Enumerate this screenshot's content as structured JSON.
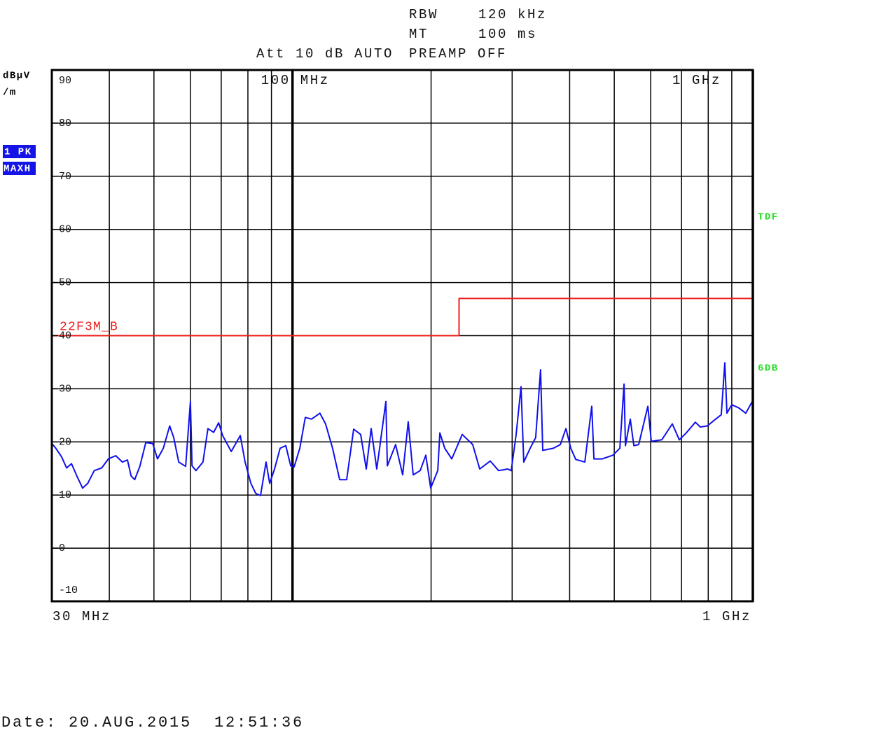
{
  "chart_data": {
    "type": "line",
    "settings": {
      "rbw_label": "RBW",
      "rbw": "120 kHz",
      "mt_label": "MT",
      "mt": "100 ms",
      "att": "Att 10 dB AUTO",
      "preamp": "PREAMP OFF"
    },
    "ylabel": "dBµV",
    "ylabel_2": "/m",
    "trace_labels": [
      "1 PK",
      "MAXH"
    ],
    "right_labels": [
      "TDF",
      "6DB"
    ],
    "start_label": "30 MHz",
    "stop_label": "1 GHz",
    "date": "Date: 20.AUG.2015  12:51:36",
    "xscale": "log",
    "xlim": [
      30,
      1000
    ],
    "xgrid": [
      40,
      50,
      60,
      70,
      80,
      90,
      200,
      300,
      400,
      500,
      600,
      700,
      800,
      900
    ],
    "xticks": [
      {
        "value": 100,
        "label": "100 MHz"
      },
      {
        "value": 1000,
        "label": "1 GHz"
      }
    ],
    "ylim": [
      -10,
      90
    ],
    "yticks": [
      -10,
      0,
      10,
      20,
      30,
      40,
      50,
      60,
      70,
      80,
      90
    ],
    "grid": true,
    "series": [
      {
        "color": "#1010ee",
        "x": [
          30.0,
          30.6,
          31.5,
          32.3,
          33.1,
          34.0,
          35.0,
          35.9,
          37.1,
          38.5,
          39.8,
          41.3,
          42.7,
          43.8,
          44.6,
          45.4,
          46.6,
          48.0,
          49.7,
          50.9,
          52.4,
          54.1,
          55.2,
          56.6,
          58.6,
          60.0,
          60.5,
          61.7,
          63.9,
          65.5,
          67.4,
          69.1,
          70.5,
          73.6,
          77.0,
          78.9,
          81.2,
          83.2,
          85.2,
          87.6,
          89.2,
          91.4,
          94.0,
          96.7,
          99.1,
          100.8,
          103.7,
          106.6,
          110.0,
          114.7,
          118.0,
          122.2,
          126.6,
          131.1,
          135.8,
          140.6,
          144.6,
          148.2,
          152.4,
          159.5,
          160.7,
          167.5,
          173.5,
          178.4,
          182.9,
          189.4,
          194.8,
          199.6,
          206.8,
          209.0,
          214.2,
          221.8,
          233.7,
          246.3,
          255.1,
          268.9,
          280.4,
          293.4,
          298.6,
          306.0,
          313.6,
          318.0,
          328.2,
          337.5,
          345.8,
          349.6,
          368.6,
          381.7,
          392.6,
          402.4,
          412.3,
          431.5,
          446.8,
          451.6,
          470.9,
          496.4,
          514.2,
          525.1,
          528.7,
          541.7,
          551.4,
          565.0,
          591.4,
          601.7,
          634.2,
          668.3,
          692.3,
          717.0,
          750.1,
          768.9,
          796.4,
          824.8,
          854.0,
          869.1,
          878.4,
          900.0,
          932.1,
          965.3,
          1000
        ],
        "values": [
          19.7,
          18.8,
          17.2,
          15.1,
          15.9,
          13.6,
          11.3,
          12.2,
          14.6,
          15.1,
          16.8,
          17.4,
          16.2,
          16.6,
          13.6,
          12.9,
          15.4,
          19.9,
          19.7,
          16.8,
          18.8,
          23.0,
          20.8,
          16.2,
          15.4,
          27.6,
          15.5,
          14.6,
          16.2,
          22.5,
          21.8,
          23.6,
          21.2,
          18.2,
          21.2,
          16.2,
          12.2,
          10.3,
          9.9,
          16.2,
          12.2,
          14.9,
          18.8,
          19.3,
          15.5,
          15.3,
          18.8,
          24.6,
          24.3,
          25.4,
          23.4,
          18.8,
          12.9,
          12.9,
          22.4,
          21.4,
          14.9,
          22.5,
          14.9,
          27.6,
          15.5,
          19.5,
          13.8,
          23.8,
          13.8,
          14.6,
          17.5,
          11.3,
          14.6,
          21.7,
          18.8,
          16.8,
          21.4,
          19.5,
          14.9,
          16.4,
          14.6,
          14.9,
          14.6,
          21.4,
          30.4,
          16.2,
          18.8,
          20.8,
          33.6,
          18.4,
          18.8,
          19.5,
          22.5,
          18.8,
          16.7,
          16.2,
          26.7,
          16.8,
          16.8,
          17.5,
          18.8,
          30.9,
          19.3,
          24.3,
          19.3,
          19.5,
          26.7,
          20.1,
          20.4,
          23.4,
          20.4,
          21.7,
          23.7,
          22.8,
          23.0,
          24.1,
          25.1,
          34.9,
          25.4,
          27.0,
          26.4,
          25.4,
          27.8
        ]
      },
      {
        "name": "22F3M_B",
        "color": "#ee1c1c",
        "x": [
          30,
          230,
          230,
          1000
        ],
        "values": [
          40,
          40,
          47,
          47
        ]
      }
    ]
  }
}
